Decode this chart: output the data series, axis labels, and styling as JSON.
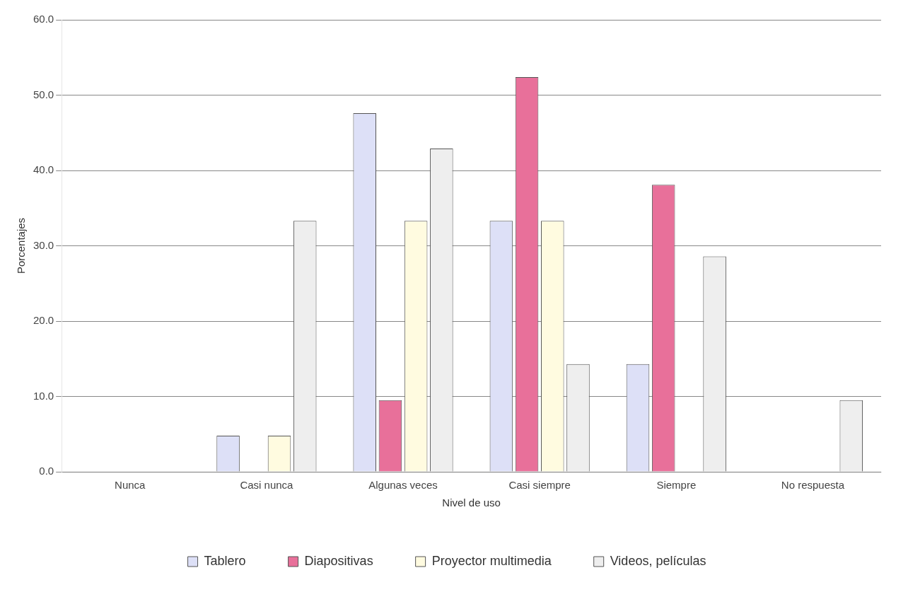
{
  "chart_data": {
    "type": "bar",
    "xlabel": "Nivel de uso",
    "ylabel": "Porcentajes",
    "categories": [
      "Nunca",
      "Casi nunca",
      "Algunas veces",
      "Casi siempre",
      "Siempre",
      "No respuesta"
    ],
    "series": [
      {
        "name": "Tablero",
        "color": "#dde0f7",
        "values": [
          0,
          4.8,
          47.6,
          33.3,
          14.3,
          0
        ]
      },
      {
        "name": "Diapositivas",
        "color": "#e8709a",
        "values": [
          0,
          0,
          9.5,
          52.4,
          38.1,
          0
        ]
      },
      {
        "name": "Proyector multimedia",
        "color": "#fffbe0",
        "values": [
          0,
          4.8,
          33.3,
          33.3,
          0,
          0
        ]
      },
      {
        "name": "Videos, películas",
        "color": "#eeeeee",
        "values": [
          0,
          33.3,
          42.9,
          14.3,
          28.6,
          9.5
        ]
      }
    ],
    "ylim": [
      0,
      60
    ],
    "yticks": [
      {
        "value": 0,
        "label": "0.0"
      },
      {
        "value": 10,
        "label": "10.0"
      },
      {
        "value": 20,
        "label": "20.0"
      },
      {
        "value": 30,
        "label": "30.0"
      },
      {
        "value": 40,
        "label": "40.0"
      },
      {
        "value": 50,
        "label": "50.0"
      },
      {
        "value": 60,
        "label": "60.0"
      }
    ],
    "grid": "y",
    "legend": "bottom"
  }
}
